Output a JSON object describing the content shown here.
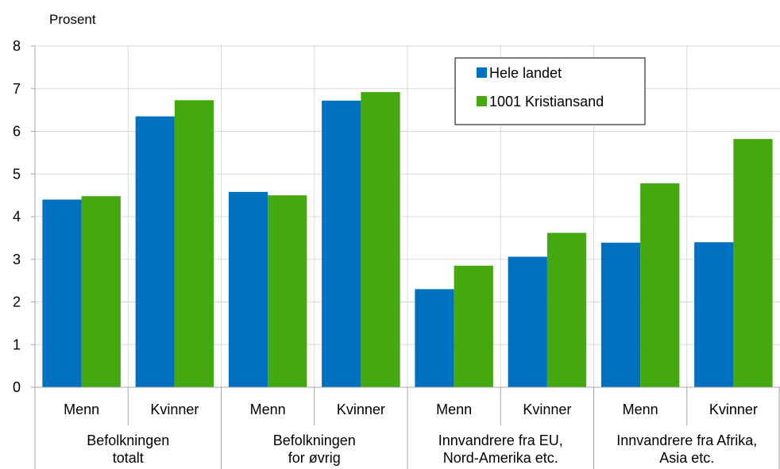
{
  "chart_data": {
    "type": "bar",
    "ylabel": "Prosent",
    "ylim": [
      0,
      8
    ],
    "yticks": [
      0,
      1,
      2,
      3,
      4,
      5,
      6,
      7,
      8
    ],
    "grid": true,
    "legend_position": "top-right",
    "groups": [
      {
        "label_lines": [
          "Befolkningen",
          "totalt"
        ],
        "categories": [
          "Menn",
          "Kvinner"
        ]
      },
      {
        "label_lines": [
          "Befolkningen",
          "for øvrig"
        ],
        "categories": [
          "Menn",
          "Kvinner"
        ]
      },
      {
        "label_lines": [
          "Innvandrere fra EU,",
          "Nord-Amerika etc."
        ],
        "categories": [
          "Menn",
          "Kvinner"
        ]
      },
      {
        "label_lines": [
          "Innvandrere fra Afrika,",
          "Asia etc."
        ],
        "categories": [
          "Menn",
          "Kvinner"
        ]
      }
    ],
    "series": [
      {
        "name": "Hele landet",
        "color": "#0070C0",
        "values": [
          4.4,
          6.35,
          4.58,
          6.72,
          2.3,
          3.06,
          3.39,
          3.4
        ]
      },
      {
        "name": "1001 Kristiansand",
        "color": "#44A80F",
        "values": [
          4.48,
          6.73,
          4.5,
          6.92,
          2.85,
          3.62,
          4.78,
          5.82
        ]
      }
    ]
  }
}
